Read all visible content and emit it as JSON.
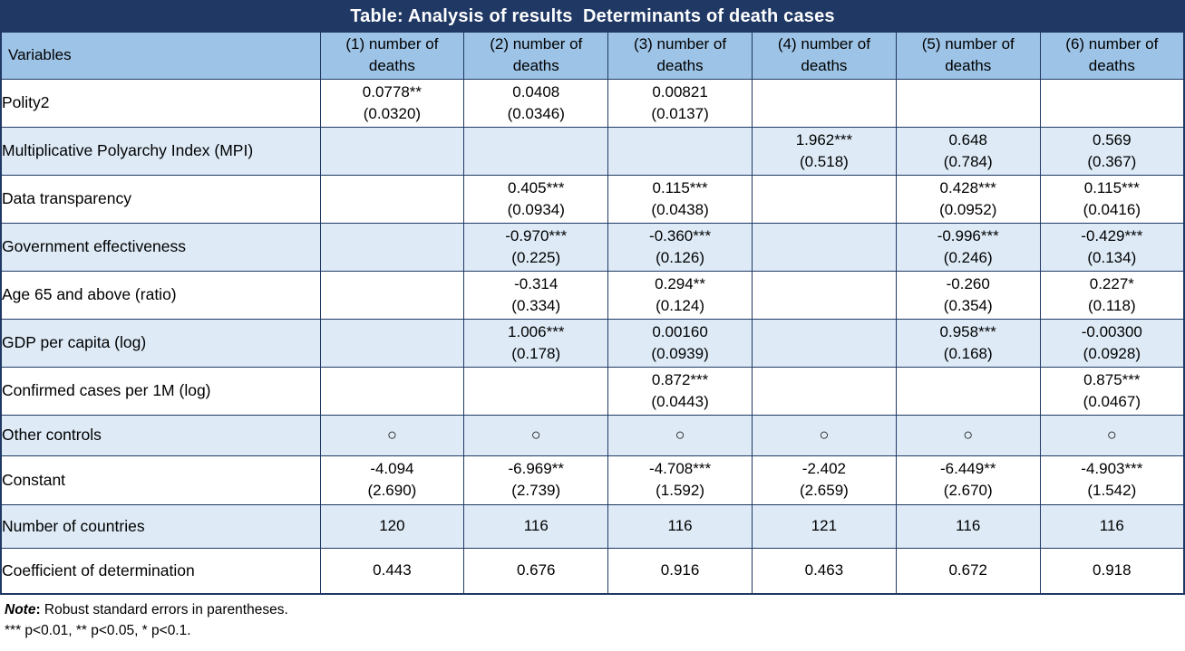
{
  "title": "Table: Analysis of results  Determinants of death cases",
  "colors": {
    "title_bg": "#1F3864",
    "title_text": "#FFFFFF",
    "header_bg": "#9DC3E6",
    "alt_row_bg": "#DEEBF7",
    "border": "#1F3864",
    "body_text": "#000000"
  },
  "header": {
    "variables_label": "Variables",
    "columns": [
      "(1) number of deaths",
      "(2) number of deaths",
      "(3) number of deaths",
      "(4) number of deaths",
      "(5) number of deaths",
      "(6) number of deaths"
    ]
  },
  "rows": [
    {
      "label": "Polity2",
      "cells": [
        {
          "est": "0.0778**",
          "se": "(0.0320)"
        },
        {
          "est": "0.0408",
          "se": "(0.0346)"
        },
        {
          "est": "0.00821",
          "se": "(0.0137)"
        },
        null,
        null,
        null
      ]
    },
    {
      "label": "Multiplicative Polyarchy Index (MPI)",
      "cells": [
        null,
        null,
        null,
        {
          "est": "1.962***",
          "se": "(0.518)"
        },
        {
          "est": "0.648",
          "se": "(0.784)"
        },
        {
          "est": "0.569",
          "se": "(0.367)"
        }
      ]
    },
    {
      "label": "Data transparency",
      "cells": [
        null,
        {
          "est": "0.405***",
          "se": "(0.0934)"
        },
        {
          "est": "0.115***",
          "se": "(0.0438)"
        },
        null,
        {
          "est": "0.428***",
          "se": "(0.0952)"
        },
        {
          "est": "0.115***",
          "se": "(0.0416)"
        }
      ]
    },
    {
      "label": "Government effectiveness",
      "cells": [
        null,
        {
          "est": "-0.970***",
          "se": "(0.225)"
        },
        {
          "est": "-0.360***",
          "se": "(0.126)"
        },
        null,
        {
          "est": "-0.996***",
          "se": "(0.246)"
        },
        {
          "est": "-0.429***",
          "se": "(0.134)"
        }
      ]
    },
    {
      "label": "Age 65 and above (ratio)",
      "cells": [
        null,
        {
          "est": "-0.314",
          "se": "(0.334)"
        },
        {
          "est": "0.294**",
          "se": "(0.124)"
        },
        null,
        {
          "est": "-0.260",
          "se": "(0.354)"
        },
        {
          "est": "0.227*",
          "se": "(0.118)"
        }
      ]
    },
    {
      "label": "GDP per capita (log)",
      "cells": [
        null,
        {
          "est": "1.006***",
          "se": "(0.178)"
        },
        {
          "est": "0.00160",
          "se": "(0.0939)"
        },
        null,
        {
          "est": "0.958***",
          "se": "(0.168)"
        },
        {
          "est": "-0.00300",
          "se": "(0.0928)"
        }
      ]
    },
    {
      "label": "Confirmed cases per 1M (log)",
      "cells": [
        null,
        null,
        {
          "est": "0.872***",
          "se": "(0.0443)"
        },
        null,
        null,
        {
          "est": "0.875***",
          "se": "(0.0467)"
        }
      ]
    },
    {
      "label": "Other controls",
      "cells": [
        "○",
        "○",
        "○",
        "○",
        "○",
        "○"
      ]
    },
    {
      "label": "Constant",
      "cells": [
        {
          "est": "-4.094",
          "se": "(2.690)"
        },
        {
          "est": "-6.969**",
          "se": "(2.739)"
        },
        {
          "est": "-4.708***",
          "se": "(1.592)"
        },
        {
          "est": "-2.402",
          "se": "(2.659)"
        },
        {
          "est": "-6.449**",
          "se": "(2.670)"
        },
        {
          "est": "-4.903***",
          "se": "(1.542)"
        }
      ]
    },
    {
      "label": "Number of countries",
      "cells": [
        "120",
        "116",
        "116",
        "121",
        "116",
        "116"
      ]
    },
    {
      "label": "Coefficient of determination",
      "cells": [
        "0.443",
        "0.676",
        "0.916",
        "0.463",
        "0.672",
        "0.918"
      ]
    }
  ],
  "notes": {
    "note_label": "Note",
    "note_colon": ":",
    "note_text": " Robust standard errors in parentheses.",
    "significance": "*** p<0.01, ** p<0.05, * p<0.1."
  }
}
